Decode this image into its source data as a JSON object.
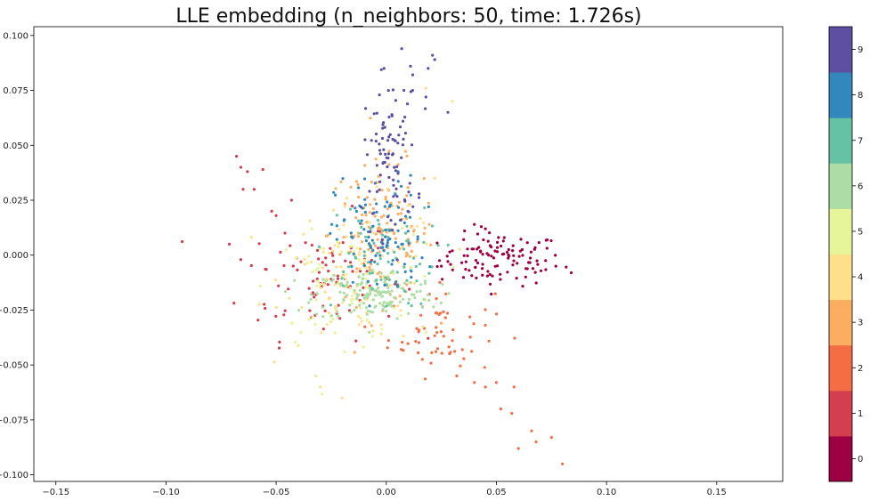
{
  "chart_data": {
    "type": "scatter",
    "title": "LLE embedding (n_neighbors: 50, time: 1.726s)",
    "xlabel": "",
    "ylabel": "",
    "xlim": [
      -0.16,
      0.18
    ],
    "ylim": [
      -0.103,
      0.104
    ],
    "x_ticks": [
      -0.15,
      -0.1,
      -0.05,
      0.0,
      0.05,
      0.1,
      0.15
    ],
    "x_tick_labels": [
      "−0.15",
      "−0.10",
      "−0.05",
      "0.00",
      "0.05",
      "0.10",
      "0.15"
    ],
    "y_ticks": [
      0.1,
      0.075,
      0.05,
      0.025,
      0.0,
      -0.025,
      -0.05,
      -0.075,
      -0.1
    ],
    "y_tick_labels": [
      "0.100",
      "0.075",
      "0.050",
      "0.025",
      "0.000",
      "−0.025",
      "−0.050",
      "−0.075",
      "−0.100"
    ],
    "grid": false,
    "colormap": "Spectral",
    "colorbar": {
      "labels": [
        "0",
        "1",
        "2",
        "3",
        "4",
        "5",
        "6",
        "7",
        "8",
        "9"
      ],
      "colors": [
        "#9e0142",
        "#d53e4f",
        "#f46d43",
        "#fdae61",
        "#fee08b",
        "#e6f598",
        "#abdda4",
        "#66c2a5",
        "#3288bd",
        "#5e4fa2"
      ]
    },
    "clusters": [
      {
        "label": "0",
        "color": "#9e0142",
        "center": [
          0.052,
          -0.002
        ],
        "spread": [
          0.014,
          0.006
        ],
        "count": 110,
        "points": [
          [
            0.084,
            -0.008
          ],
          [
            0.077,
            -0.005
          ],
          [
            0.04,
            0.014
          ],
          [
            0.045,
            0.012
          ],
          [
            0.025,
            -0.005
          ],
          [
            0.03,
            0.002
          ]
        ]
      },
      {
        "label": "1",
        "color": "#d53e4f",
        "center": [
          -0.03,
          -0.01
        ],
        "spread": [
          0.018,
          0.014
        ],
        "count": 90,
        "points": [
          [
            -0.068,
            0.045
          ],
          [
            -0.066,
            0.04
          ],
          [
            -0.063,
            0.038
          ],
          [
            -0.056,
            0.039
          ],
          [
            -0.06,
            0.03
          ],
          [
            -0.065,
            0.03
          ],
          [
            -0.052,
            0.02
          ],
          [
            -0.05,
            0.018
          ],
          [
            -0.046,
            0.01
          ],
          [
            -0.043,
            0.025
          ],
          [
            -0.066,
            -0.002
          ]
        ]
      },
      {
        "label": "2",
        "color": "#f46d43",
        "center": [
          0.025,
          -0.035
        ],
        "spread": [
          0.012,
          0.01
        ],
        "count": 60,
        "points": [
          [
            0.032,
            -0.055
          ],
          [
            0.04,
            -0.058
          ],
          [
            0.05,
            -0.058
          ],
          [
            0.052,
            -0.07
          ],
          [
            0.057,
            -0.072
          ],
          [
            0.06,
            -0.088
          ],
          [
            0.068,
            -0.085
          ],
          [
            0.075,
            -0.083
          ],
          [
            0.08,
            -0.095
          ],
          [
            0.066,
            -0.08
          ],
          [
            0.058,
            -0.06
          ],
          [
            0.045,
            -0.06
          ]
        ]
      },
      {
        "label": "3",
        "color": "#fdae61",
        "center": [
          -0.002,
          0.01
        ],
        "spread": [
          0.012,
          0.016
        ],
        "count": 130,
        "points": []
      },
      {
        "label": "4",
        "color": "#fee08b",
        "center": [
          -0.01,
          -0.008
        ],
        "spread": [
          0.018,
          0.016
        ],
        "count": 110,
        "points": [
          [
            -0.03,
            -0.06
          ],
          [
            -0.032,
            -0.055
          ],
          [
            0.022,
            0.035
          ],
          [
            0.03,
            0.07
          ],
          [
            -0.02,
            -0.065
          ],
          [
            0.018,
            0.076
          ]
        ]
      },
      {
        "label": "5",
        "color": "#e6f598",
        "center": [
          -0.02,
          -0.015
        ],
        "spread": [
          0.016,
          0.012
        ],
        "count": 80,
        "points": []
      },
      {
        "label": "6",
        "color": "#abdda4",
        "center": [
          -0.005,
          -0.018
        ],
        "spread": [
          0.014,
          0.006
        ],
        "count": 140,
        "points": []
      },
      {
        "label": "7",
        "color": "#66c2a5",
        "center": [
          -0.005,
          0.0
        ],
        "spread": [
          0.014,
          0.012
        ],
        "count": 70,
        "points": []
      },
      {
        "label": "8",
        "color": "#3288bd",
        "center": [
          -0.003,
          0.008
        ],
        "spread": [
          0.01,
          0.014
        ],
        "count": 100,
        "points": []
      },
      {
        "label": "9",
        "color": "#5e4fa2",
        "center": [
          0.002,
          0.045
        ],
        "spread": [
          0.006,
          0.018
        ],
        "count": 90,
        "points": [
          [
            0.007,
            0.094
          ],
          [
            0.021,
            0.091
          ],
          [
            0.022,
            0.089
          ],
          [
            -0.001,
            0.085
          ],
          [
            0.011,
            0.086
          ],
          [
            0.019,
            0.085
          ],
          [
            0.001,
            0.075
          ],
          [
            0.012,
            0.075
          ],
          [
            0.018,
            0.072
          ],
          [
            0.028,
            0.065
          ]
        ]
      }
    ]
  }
}
